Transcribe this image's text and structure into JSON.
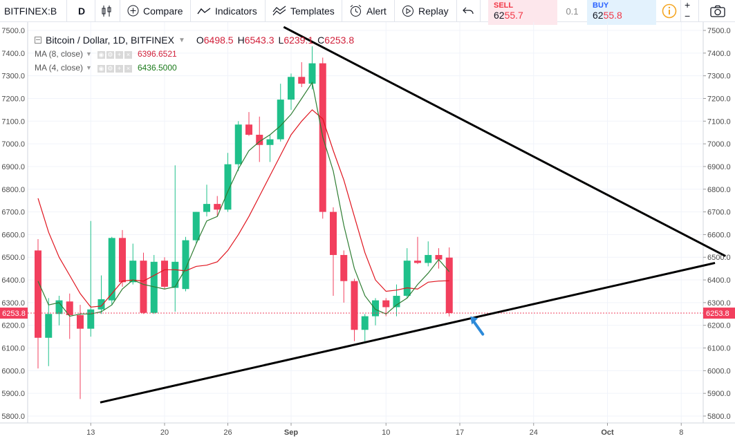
{
  "toolbar": {
    "symbol": "BITFINEX:B",
    "interval": "D",
    "compare": "Compare",
    "indicators": "Indicators",
    "templates": "Templates",
    "alert": "Alert",
    "replay": "Replay",
    "sell_label": "SELL",
    "sell_price_prefix": "62",
    "sell_price_highlight": "55.7",
    "spread": "0.1",
    "buy_label": "BUY",
    "buy_price_prefix": "62",
    "buy_price_highlight": "55.8",
    "zoom_in": "+",
    "zoom_out": "−"
  },
  "legend": {
    "title": "Bitcoin / Dollar, 1D, BITFINEX",
    "o_label": "O",
    "o": "6498.5",
    "h_label": "H",
    "h": "6543.3",
    "l_label": "L",
    "l": "6239.1",
    "c_label": "C",
    "c": "6253.8",
    "ma8_label": "MA (8, close)",
    "ma8_value": "6396.6521",
    "ma4_label": "MA (4, close)",
    "ma4_value": "6436.5000"
  },
  "colors": {
    "up": "#26a69a",
    "up_fill": "#1fc08a",
    "down": "#f23f5d",
    "ma8": "#e0141e",
    "ma4": "#2e7d32",
    "arrow": "#2d8ad9"
  },
  "chart_data": {
    "type": "candlestick",
    "ylim": [
      5750,
      7520
    ],
    "y_ticks": [
      "5800.0",
      "5900.0",
      "6000.0",
      "6100.0",
      "6200.0",
      "6300.0",
      "6400.0",
      "6500.0",
      "6600.0",
      "6700.0",
      "6800.0",
      "6900.0",
      "7000.0",
      "7100.0",
      "7200.0",
      "7300.0",
      "7400.0",
      "7500.0"
    ],
    "x_ticks": [
      {
        "label": "13",
        "i": 5
      },
      {
        "label": "20",
        "i": 12
      },
      {
        "label": "26",
        "i": 18
      },
      {
        "label": "Sep",
        "i": 24
      },
      {
        "label": "10",
        "i": 33
      },
      {
        "label": "17",
        "i": 40
      },
      {
        "label": "24",
        "i": 47
      },
      {
        "label": "Oct",
        "i": 54
      },
      {
        "label": "8",
        "i": 61
      }
    ],
    "last_price": "6253.8",
    "last_value": 6253.8,
    "candles": [
      {
        "o": 6530,
        "h": 6580,
        "l": 6010,
        "c": 6145
      },
      {
        "o": 6145,
        "h": 6320,
        "l": 6020,
        "c": 6250
      },
      {
        "o": 6250,
        "h": 6330,
        "l": 6200,
        "c": 6310
      },
      {
        "o": 6305,
        "h": 6340,
        "l": 6140,
        "c": 6245
      },
      {
        "o": 6245,
        "h": 6290,
        "l": 5875,
        "c": 6185
      },
      {
        "o": 6185,
        "h": 6660,
        "l": 6150,
        "c": 6270
      },
      {
        "o": 6270,
        "h": 6420,
        "l": 6250,
        "c": 6315
      },
      {
        "o": 6310,
        "h": 6590,
        "l": 6290,
        "c": 6585
      },
      {
        "o": 6585,
        "h": 6620,
        "l": 6370,
        "c": 6390
      },
      {
        "o": 6390,
        "h": 6560,
        "l": 6380,
        "c": 6485
      },
      {
        "o": 6485,
        "h": 6520,
        "l": 6250,
        "c": 6255
      },
      {
        "o": 6255,
        "h": 6510,
        "l": 6250,
        "c": 6480
      },
      {
        "o": 6485,
        "h": 6500,
        "l": 6360,
        "c": 6370
      },
      {
        "o": 6365,
        "h": 6905,
        "l": 6260,
        "c": 6480
      },
      {
        "o": 6360,
        "h": 6590,
        "l": 6350,
        "c": 6575
      },
      {
        "o": 6575,
        "h": 6700,
        "l": 6560,
        "c": 6700
      },
      {
        "o": 6700,
        "h": 6820,
        "l": 6680,
        "c": 6735
      },
      {
        "o": 6735,
        "h": 6770,
        "l": 6680,
        "c": 6710
      },
      {
        "o": 6710,
        "h": 6960,
        "l": 6700,
        "c": 6910
      },
      {
        "o": 6910,
        "h": 7100,
        "l": 6880,
        "c": 7085
      },
      {
        "o": 7085,
        "h": 7140,
        "l": 7035,
        "c": 7040
      },
      {
        "o": 7040,
        "h": 7120,
        "l": 6920,
        "c": 6995
      },
      {
        "o": 6995,
        "h": 7040,
        "l": 6920,
        "c": 7020
      },
      {
        "o": 7020,
        "h": 7265,
        "l": 7010,
        "c": 7195
      },
      {
        "o": 7195,
        "h": 7310,
        "l": 7150,
        "c": 7295
      },
      {
        "o": 7295,
        "h": 7360,
        "l": 7250,
        "c": 7265
      },
      {
        "o": 7265,
        "h": 7430,
        "l": 7240,
        "c": 7355
      },
      {
        "o": 7355,
        "h": 7380,
        "l": 6670,
        "c": 6700
      },
      {
        "o": 6700,
        "h": 6720,
        "l": 6330,
        "c": 6510
      },
      {
        "o": 6510,
        "h": 6530,
        "l": 6300,
        "c": 6395
      },
      {
        "o": 6395,
        "h": 6405,
        "l": 6130,
        "c": 6180
      },
      {
        "o": 6180,
        "h": 6250,
        "l": 6130,
        "c": 6240
      },
      {
        "o": 6240,
        "h": 6320,
        "l": 6200,
        "c": 6310
      },
      {
        "o": 6310,
        "h": 6320,
        "l": 6240,
        "c": 6280
      },
      {
        "o": 6280,
        "h": 6380,
        "l": 6240,
        "c": 6330
      },
      {
        "o": 6330,
        "h": 6540,
        "l": 6320,
        "c": 6485
      },
      {
        "o": 6485,
        "h": 6590,
        "l": 6470,
        "c": 6475
      },
      {
        "o": 6475,
        "h": 6570,
        "l": 6460,
        "c": 6510
      },
      {
        "o": 6510,
        "h": 6540,
        "l": 6450,
        "c": 6490
      },
      {
        "o": 6498.5,
        "h": 6543.3,
        "l": 6239.1,
        "c": 6253.8
      }
    ],
    "ma8": [
      6760,
      6610,
      6500,
      6420,
      6340,
      6280,
      6285,
      6340,
      6395,
      6400,
      6395,
      6420,
      6445,
      6445,
      6440,
      6460,
      6465,
      6480,
      6530,
      6600,
      6680,
      6770,
      6860,
      6950,
      7040,
      7100,
      7150,
      7110,
      6970,
      6840,
      6680,
      6520,
      6400,
      6350,
      6355,
      6365,
      6360,
      6390,
      6395,
      6396.65
    ],
    "ma4": [
      6395,
      6290,
      6300,
      6240,
      6250,
      6250,
      6260,
      6290,
      6360,
      6400,
      6380,
      6370,
      6360,
      6370,
      6450,
      6560,
      6660,
      6680,
      6790,
      6890,
      6970,
      7010,
      7040,
      7080,
      7130,
      7200,
      7270,
      7030,
      6880,
      6640,
      6450,
      6330,
      6270,
      6250,
      6290,
      6320,
      6380,
      6430,
      6490,
      6436.5
    ],
    "trendlines": [
      {
        "x1": 5.9,
        "y1": 5860,
        "x2": 64.2,
        "y2": 6475
      },
      {
        "x1": 23.3,
        "y1": 7515,
        "x2": 65.2,
        "y2": 6505
      }
    ],
    "arrow": {
      "x": 41.0,
      "y": 6240
    }
  }
}
